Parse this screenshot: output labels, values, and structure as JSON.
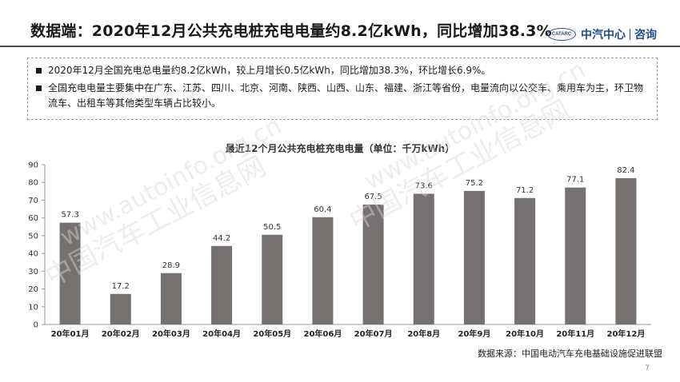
{
  "header": {
    "title": "数据端：2020年12月公共充电桩充电电量约8.2亿kWh，同比增加38.3%",
    "logo_badge": "CATARC",
    "logo_name": "中汽中心",
    "logo_sub": "咨询"
  },
  "summary": {
    "bullets": [
      "2020年12月全国充电总电量约8.2亿kWh，较上月增长0.5亿kWh，同比增加38.3%，环比增长6.9%。",
      "全国充电电量主要集中在广东、江苏、四川、北京、河南、陕西、山西、山东、福建、浙江等省份，电量流向以公交车、乘用车为主，环卫物流车、出租车等其他类型车辆占比较小。"
    ]
  },
  "chart_data": {
    "type": "bar",
    "title": "最近12个月公共充电桩充电电量（单位：千万kWh）",
    "categories": [
      "20年01月",
      "20年02月",
      "20年03月",
      "20年04月",
      "20年05月",
      "20年06月",
      "20年07月",
      "20年8月",
      "20年9月",
      "20年10月",
      "20年11月",
      "20年12月"
    ],
    "values": [
      57.3,
      17.2,
      28.9,
      44.2,
      50.5,
      60.4,
      67.5,
      73.6,
      75.2,
      71.2,
      77.1,
      82.4
    ],
    "ylim": [
      0,
      90
    ],
    "yticks": [
      0,
      10,
      20,
      30,
      40,
      50,
      60,
      70,
      80,
      90
    ],
    "bar_color": "#767171",
    "grid": false,
    "xlabel": "",
    "ylabel": ""
  },
  "footer": {
    "source": "数据来源：中国电动汽车充电基础设施促进联盟",
    "page": "7"
  },
  "watermark": {
    "texts": [
      "中国汽车工业信息网",
      "www.autoinfo.org.cn"
    ]
  }
}
